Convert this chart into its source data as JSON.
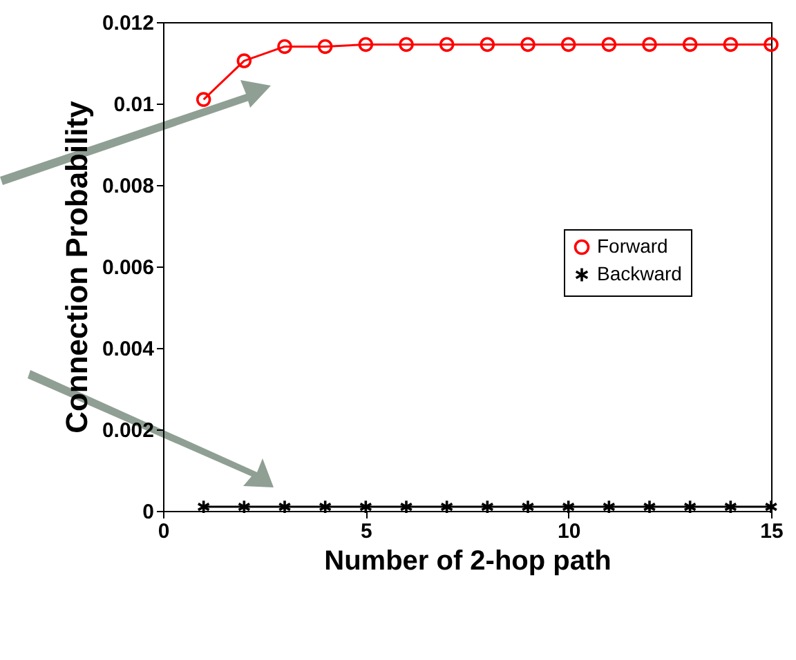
{
  "chart_data": {
    "type": "line",
    "xlabel": "Number of 2-hop path",
    "ylabel": "Connection Probability",
    "x": [
      1,
      2,
      3,
      4,
      5,
      6,
      7,
      8,
      9,
      10,
      11,
      12,
      13,
      14,
      15
    ],
    "series": [
      {
        "name": "Forward",
        "color": "#ff0000",
        "marker": "circle",
        "values": [
          0.0101,
          0.01105,
          0.0114,
          0.0114,
          0.01145,
          0.01145,
          0.01145,
          0.01145,
          0.01145,
          0.01145,
          0.01145,
          0.01145,
          0.01145,
          0.01145,
          0.01145
        ]
      },
      {
        "name": "Backward",
        "color": "#000000",
        "marker": "cross",
        "values": [
          0.0001,
          0.0001,
          0.0001,
          0.0001,
          0.0001,
          0.0001,
          0.0001,
          0.0001,
          0.0001,
          0.0001,
          0.0001,
          0.0001,
          0.0001,
          0.0001,
          0.0001
        ]
      }
    ],
    "xlim": [
      0,
      15
    ],
    "xticks": [
      0,
      5,
      10,
      15
    ],
    "ylim": [
      0,
      0.012
    ],
    "yticks": [
      0,
      0.002,
      0.004,
      0.006,
      0.008,
      0.01,
      0.012
    ],
    "legend": "right",
    "grid": false,
    "line_style": "solid"
  }
}
